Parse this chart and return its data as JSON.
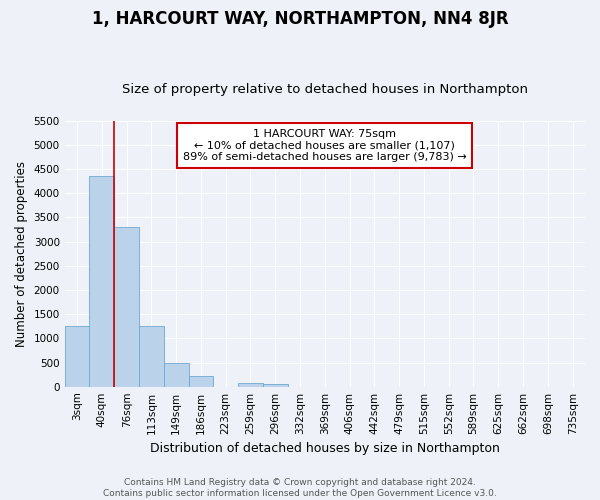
{
  "title": "1, HARCOURT WAY, NORTHAMPTON, NN4 8JR",
  "subtitle": "Size of property relative to detached houses in Northampton",
  "xlabel": "Distribution of detached houses by size in Northampton",
  "ylabel": "Number of detached properties",
  "footer_line1": "Contains HM Land Registry data © Crown copyright and database right 2024.",
  "footer_line2": "Contains public sector information licensed under the Open Government Licence v3.0.",
  "categories": [
    "3sqm",
    "40sqm",
    "76sqm",
    "113sqm",
    "149sqm",
    "186sqm",
    "223sqm",
    "259sqm",
    "296sqm",
    "332sqm",
    "369sqm",
    "406sqm",
    "442sqm",
    "479sqm",
    "515sqm",
    "552sqm",
    "589sqm",
    "625sqm",
    "662sqm",
    "698sqm",
    "735sqm"
  ],
  "bar_heights": [
    1250,
    4350,
    3300,
    1250,
    480,
    230,
    0,
    70,
    60,
    0,
    0,
    0,
    0,
    0,
    0,
    0,
    0,
    0,
    0,
    0,
    0
  ],
  "bar_color": "#bad3eb",
  "bar_edgecolor": "#6fa8d0",
  "ylim": [
    0,
    5500
  ],
  "yticks": [
    0,
    500,
    1000,
    1500,
    2000,
    2500,
    3000,
    3500,
    4000,
    4500,
    5000,
    5500
  ],
  "vline_x": 1.5,
  "vline_color": "#cc0000",
  "annotation_text": "1 HARCOURT WAY: 75sqm\n← 10% of detached houses are smaller (1,107)\n89% of semi-detached houses are larger (9,783) →",
  "annotation_box_facecolor": "#ffffff",
  "annotation_box_edgecolor": "#cc0000",
  "background_color": "#eef2f8",
  "grid_color": "#ffffff",
  "title_fontsize": 12,
  "subtitle_fontsize": 9.5,
  "xlabel_fontsize": 9,
  "ylabel_fontsize": 8.5,
  "annot_fontsize": 8,
  "tick_fontsize": 7.5,
  "footer_fontsize": 6.5
}
